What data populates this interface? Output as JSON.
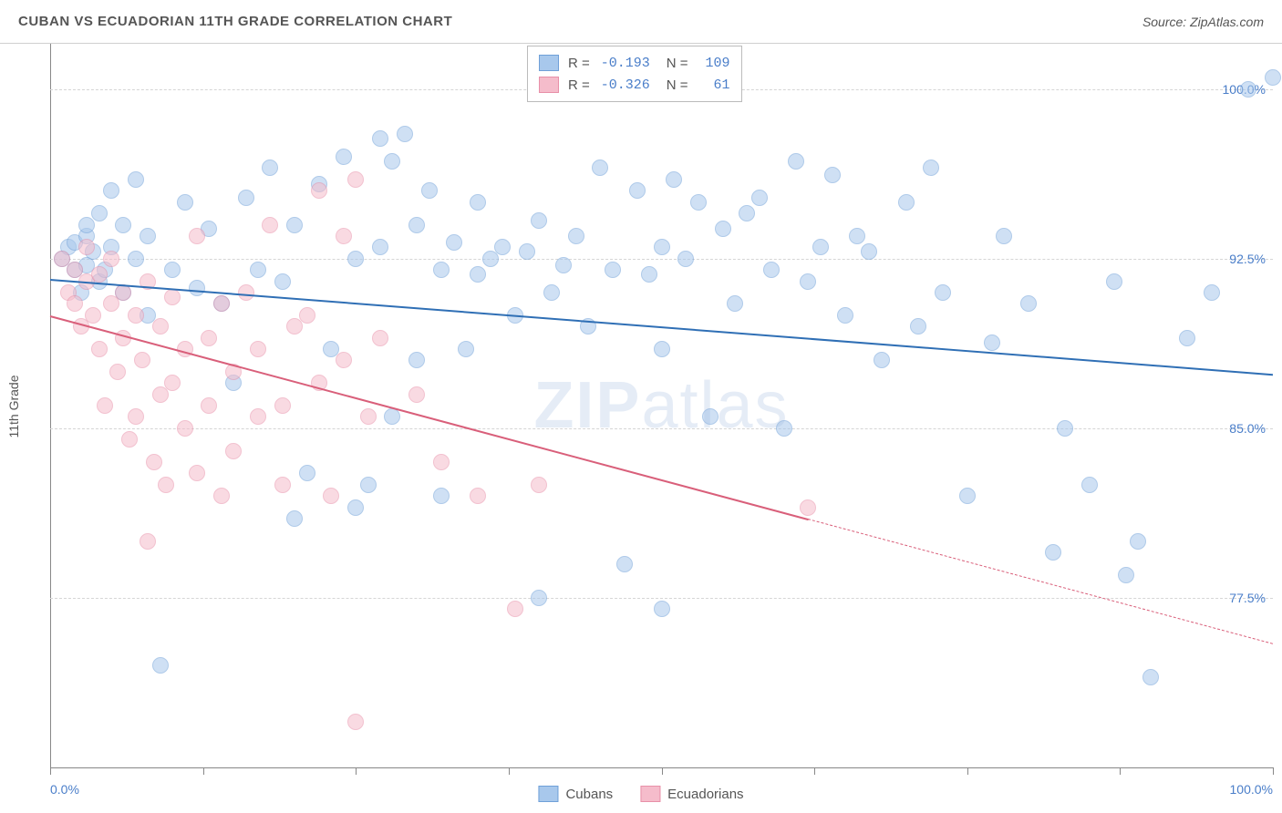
{
  "header": {
    "title": "CUBAN VS ECUADORIAN 11TH GRADE CORRELATION CHART",
    "source": "Source: ZipAtlas.com"
  },
  "chart": {
    "type": "scatter",
    "ylabel": "11th Grade",
    "watermark_a": "ZIP",
    "watermark_b": "atlas",
    "background_color": "#ffffff",
    "grid_color": "#d5d5d5",
    "axis_color": "#888888",
    "label_color": "#4a7ec9",
    "text_color": "#555555",
    "xlim": [
      0,
      100
    ],
    "ylim": [
      70,
      102
    ],
    "x_ticks": [
      0,
      12.5,
      25,
      37.5,
      50,
      62.5,
      75,
      87.5,
      100
    ],
    "y_gridlines": [
      77.5,
      85.0,
      92.5,
      100.0
    ],
    "y_tick_labels": [
      "77.5%",
      "85.0%",
      "92.5%",
      "100.0%"
    ],
    "x_left_label": "0.0%",
    "x_right_label": "100.0%",
    "point_radius": 9,
    "point_opacity": 0.55,
    "point_border_opacity": 0.9,
    "series": [
      {
        "name": "Cubans",
        "fill_color": "#a8c8ec",
        "border_color": "#6fa0d8",
        "line_color": "#2f6fb5",
        "R": "-0.193",
        "N": "109",
        "trend": {
          "x1": 0,
          "y1": 91.6,
          "x2": 100,
          "y2": 87.4,
          "solid_until_x": 100
        },
        "points": [
          [
            1,
            92.5
          ],
          [
            1.5,
            93.0
          ],
          [
            2,
            92.0
          ],
          [
            2,
            93.2
          ],
          [
            2.5,
            91.0
          ],
          [
            3,
            93.5
          ],
          [
            3,
            94.0
          ],
          [
            3,
            92.2
          ],
          [
            3.5,
            92.8
          ],
          [
            4,
            94.5
          ],
          [
            4,
            91.5
          ],
          [
            4.5,
            92.0
          ],
          [
            5,
            93.0
          ],
          [
            5,
            95.5
          ],
          [
            6,
            91.0
          ],
          [
            6,
            94.0
          ],
          [
            7,
            92.5
          ],
          [
            7,
            96.0
          ],
          [
            8,
            90.0
          ],
          [
            8,
            93.5
          ],
          [
            9,
            74.5
          ],
          [
            10,
            92.0
          ],
          [
            11,
            95.0
          ],
          [
            12,
            91.2
          ],
          [
            13,
            93.8
          ],
          [
            14,
            90.5
          ],
          [
            15,
            87.0
          ],
          [
            16,
            95.2
          ],
          [
            17,
            92.0
          ],
          [
            18,
            96.5
          ],
          [
            19,
            91.5
          ],
          [
            20,
            94.0
          ],
          [
            20,
            81.0
          ],
          [
            21,
            83.0
          ],
          [
            22,
            95.8
          ],
          [
            23,
            88.5
          ],
          [
            24,
            97.0
          ],
          [
            25,
            92.5
          ],
          [
            25,
            81.5
          ],
          [
            26,
            82.5
          ],
          [
            27,
            97.8
          ],
          [
            27,
            93.0
          ],
          [
            28,
            85.5
          ],
          [
            28,
            96.8
          ],
          [
            29,
            98.0
          ],
          [
            30,
            94.0
          ],
          [
            30,
            88.0
          ],
          [
            31,
            95.5
          ],
          [
            32,
            82.0
          ],
          [
            32,
            92.0
          ],
          [
            33,
            93.2
          ],
          [
            34,
            88.5
          ],
          [
            35,
            91.8
          ],
          [
            35,
            95.0
          ],
          [
            36,
            92.5
          ],
          [
            37,
            93.0
          ],
          [
            38,
            90.0
          ],
          [
            39,
            92.8
          ],
          [
            40,
            77.5
          ],
          [
            40,
            94.2
          ],
          [
            41,
            91.0
          ],
          [
            42,
            92.2
          ],
          [
            43,
            93.5
          ],
          [
            44,
            89.5
          ],
          [
            45,
            96.5
          ],
          [
            46,
            92.0
          ],
          [
            47,
            79.0
          ],
          [
            48,
            95.5
          ],
          [
            49,
            91.8
          ],
          [
            50,
            77.0
          ],
          [
            50,
            88.5
          ],
          [
            50,
            93.0
          ],
          [
            51,
            96.0
          ],
          [
            52,
            92.5
          ],
          [
            53,
            95.0
          ],
          [
            54,
            85.5
          ],
          [
            55,
            93.8
          ],
          [
            56,
            90.5
          ],
          [
            57,
            94.5
          ],
          [
            58,
            95.2
          ],
          [
            59,
            92.0
          ],
          [
            60,
            85.0
          ],
          [
            61,
            96.8
          ],
          [
            62,
            91.5
          ],
          [
            63,
            93.0
          ],
          [
            64,
            96.2
          ],
          [
            65,
            90.0
          ],
          [
            66,
            93.5
          ],
          [
            67,
            92.8
          ],
          [
            68,
            88.0
          ],
          [
            70,
            95.0
          ],
          [
            71,
            89.5
          ],
          [
            72,
            96.5
          ],
          [
            73,
            91.0
          ],
          [
            75,
            82.0
          ],
          [
            77,
            88.8
          ],
          [
            78,
            93.5
          ],
          [
            80,
            90.5
          ],
          [
            82,
            79.5
          ],
          [
            83,
            85.0
          ],
          [
            85,
            82.5
          ],
          [
            87,
            91.5
          ],
          [
            88,
            78.5
          ],
          [
            89,
            80.0
          ],
          [
            90,
            74.0
          ],
          [
            93,
            89.0
          ],
          [
            95,
            91.0
          ],
          [
            98,
            100.0
          ],
          [
            100,
            100.5
          ]
        ]
      },
      {
        "name": "Ecuadorians",
        "fill_color": "#f5bccb",
        "border_color": "#e890a8",
        "line_color": "#d95f7a",
        "R": "-0.326",
        "N": "61",
        "trend": {
          "x1": 0,
          "y1": 90.0,
          "x2": 100,
          "y2": 75.5,
          "solid_until_x": 62
        },
        "points": [
          [
            1,
            92.5
          ],
          [
            1.5,
            91.0
          ],
          [
            2,
            90.5
          ],
          [
            2,
            92.0
          ],
          [
            2.5,
            89.5
          ],
          [
            3,
            91.5
          ],
          [
            3,
            93.0
          ],
          [
            3.5,
            90.0
          ],
          [
            4,
            88.5
          ],
          [
            4,
            91.8
          ],
          [
            4.5,
            86.0
          ],
          [
            5,
            90.5
          ],
          [
            5,
            92.5
          ],
          [
            5.5,
            87.5
          ],
          [
            6,
            89.0
          ],
          [
            6,
            91.0
          ],
          [
            6.5,
            84.5
          ],
          [
            7,
            85.5
          ],
          [
            7,
            90.0
          ],
          [
            7.5,
            88.0
          ],
          [
            8,
            80.0
          ],
          [
            8,
            91.5
          ],
          [
            8.5,
            83.5
          ],
          [
            9,
            86.5
          ],
          [
            9,
            89.5
          ],
          [
            9.5,
            82.5
          ],
          [
            10,
            87.0
          ],
          [
            10,
            90.8
          ],
          [
            11,
            85.0
          ],
          [
            11,
            88.5
          ],
          [
            12,
            83.0
          ],
          [
            12,
            93.5
          ],
          [
            13,
            86.0
          ],
          [
            13,
            89.0
          ],
          [
            14,
            82.0
          ],
          [
            14,
            90.5
          ],
          [
            15,
            87.5
          ],
          [
            15,
            84.0
          ],
          [
            16,
            91.0
          ],
          [
            17,
            88.5
          ],
          [
            17,
            85.5
          ],
          [
            18,
            94.0
          ],
          [
            19,
            86.0
          ],
          [
            19,
            82.5
          ],
          [
            20,
            89.5
          ],
          [
            21,
            90.0
          ],
          [
            22,
            87.0
          ],
          [
            22,
            95.5
          ],
          [
            23,
            82.0
          ],
          [
            24,
            93.5
          ],
          [
            24,
            88.0
          ],
          [
            25,
            72.0
          ],
          [
            25,
            96.0
          ],
          [
            26,
            85.5
          ],
          [
            27,
            89.0
          ],
          [
            30,
            86.5
          ],
          [
            32,
            83.5
          ],
          [
            35,
            82.0
          ],
          [
            38,
            77.0
          ],
          [
            40,
            82.5
          ],
          [
            62,
            81.5
          ]
        ]
      }
    ]
  },
  "legend_bottom": {
    "items": [
      "Cubans",
      "Ecuadorians"
    ]
  }
}
